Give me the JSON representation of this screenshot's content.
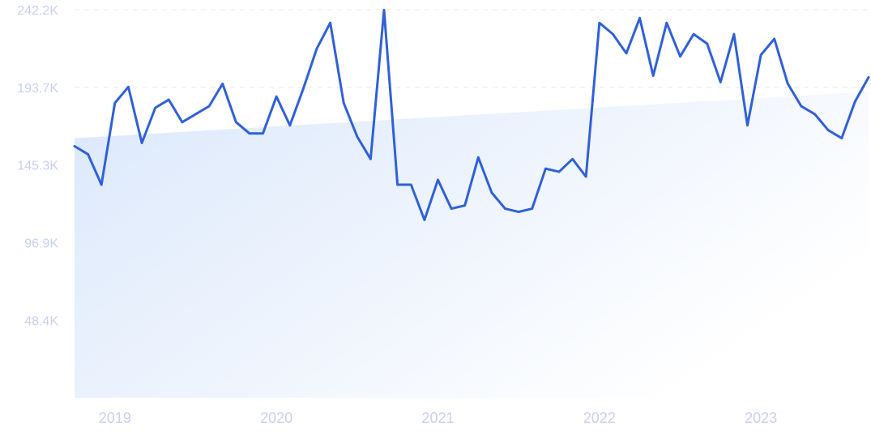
{
  "chart_data": {
    "type": "line",
    "title": "",
    "xlabel": "",
    "ylabel": "",
    "grid": true,
    "ylim": [
      0,
      242200
    ],
    "y_ticks": [
      48400,
      96900,
      145300,
      193700,
      242200
    ],
    "y_tick_labels": [
      "48.4K",
      "96.9K",
      "145.3K",
      "193.7K",
      "242.2K"
    ],
    "x_tick_labels": [
      "2019",
      "2020",
      "2021",
      "2022",
      "2023"
    ],
    "x_ticks": [
      "2019-01",
      "2020-01",
      "2021-01",
      "2022-01",
      "2023-01"
    ],
    "x_range": [
      "2018-10",
      "2023-09"
    ],
    "trend_band": {
      "start_value": 162000,
      "end_value": 191000
    },
    "colors": {
      "line": "#3060d9",
      "band_start": "#dbe8fb",
      "band_end": "#ffffff",
      "grid": "#e3e8f5",
      "tick_label": "#c7d0f2"
    },
    "series": [
      {
        "x": [
          "2018-10",
          "2018-11",
          "2018-12",
          "2019-01",
          "2019-02",
          "2019-03",
          "2019-04",
          "2019-05",
          "2019-06",
          "2019-07",
          "2019-08",
          "2019-09",
          "2019-10",
          "2019-11",
          "2019-12",
          "2020-01",
          "2020-02",
          "2020-03",
          "2020-04",
          "2020-05",
          "2020-06",
          "2020-07",
          "2020-08",
          "2020-09",
          "2020-10",
          "2020-11",
          "2020-12",
          "2021-01",
          "2021-02",
          "2021-03",
          "2021-04",
          "2021-05",
          "2021-06",
          "2021-07",
          "2021-08",
          "2021-09",
          "2021-10",
          "2021-11",
          "2021-12",
          "2022-01",
          "2022-02",
          "2022-03",
          "2022-04",
          "2022-05",
          "2022-06",
          "2022-07",
          "2022-08",
          "2022-09",
          "2022-10",
          "2022-11",
          "2022-12",
          "2023-01",
          "2023-02",
          "2023-03",
          "2023-04",
          "2023-05",
          "2023-06",
          "2023-07",
          "2023-08",
          "2023-09"
        ],
        "values": [
          157000,
          152000,
          133000,
          184000,
          194000,
          159000,
          181000,
          186000,
          172000,
          177000,
          182000,
          196000,
          172000,
          165000,
          165000,
          188000,
          170000,
          193000,
          218000,
          234000,
          184000,
          163000,
          149000,
          242000,
          133000,
          133000,
          111000,
          136000,
          118000,
          120000,
          150000,
          128000,
          118000,
          116000,
          118000,
          143000,
          141000,
          149000,
          138000,
          234000,
          227000,
          215000,
          237000,
          201000,
          234000,
          213000,
          227000,
          221000,
          197000,
          227000,
          170000,
          214000,
          224000,
          196000,
          182000,
          177000,
          167000,
          162000,
          185000,
          200000
        ]
      }
    ]
  }
}
